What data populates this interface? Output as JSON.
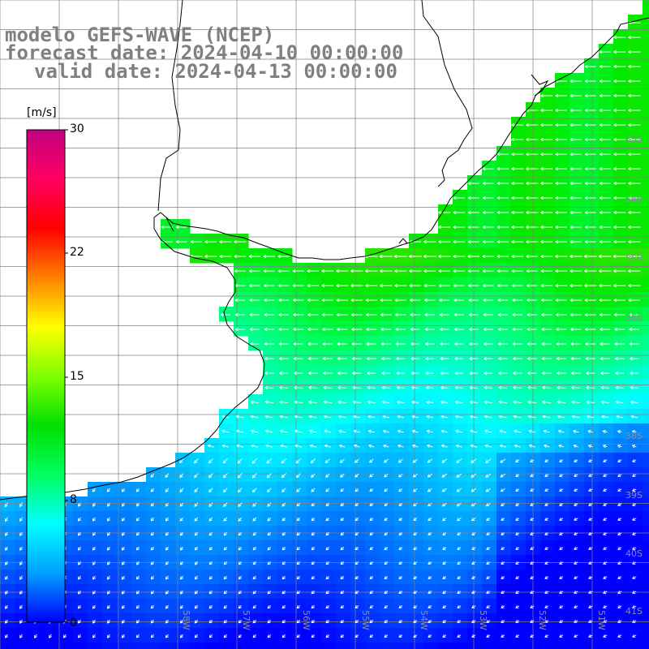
{
  "title": {
    "line1": "modelo GEFS-WAVE (NCEP)",
    "line2": "forecast date: 2024-04-10 00:00:00",
    "line3": "valid date: 2024-04-13 00:00:00"
  },
  "colorbar": {
    "unit": "[m/s]",
    "min": 0,
    "max": 30,
    "ticks": [
      "30",
      "22",
      "15",
      "8",
      "0"
    ],
    "tick_values": [
      30,
      22,
      15,
      8,
      0
    ],
    "colors": [
      "#0000ff",
      "#00a0ff",
      "#00ffff",
      "#00ff60",
      "#00e000",
      "#80ff00",
      "#ffff00",
      "#ff8000",
      "#ff0000",
      "#ff0060",
      "#c00080"
    ]
  },
  "lat_labels": [
    "33S",
    "34S",
    "35S",
    "36S",
    "38S",
    "39S",
    "40S",
    "41S"
  ],
  "lon_labels": [
    "58W",
    "57W",
    "56W",
    "55W",
    "54W",
    "53W",
    "52W",
    "51W"
  ],
  "colors": {
    "land": "#ffffff",
    "grid": "#808080",
    "coast": "#000000",
    "arrow": "#ffffff",
    "title": "#808080"
  }
}
